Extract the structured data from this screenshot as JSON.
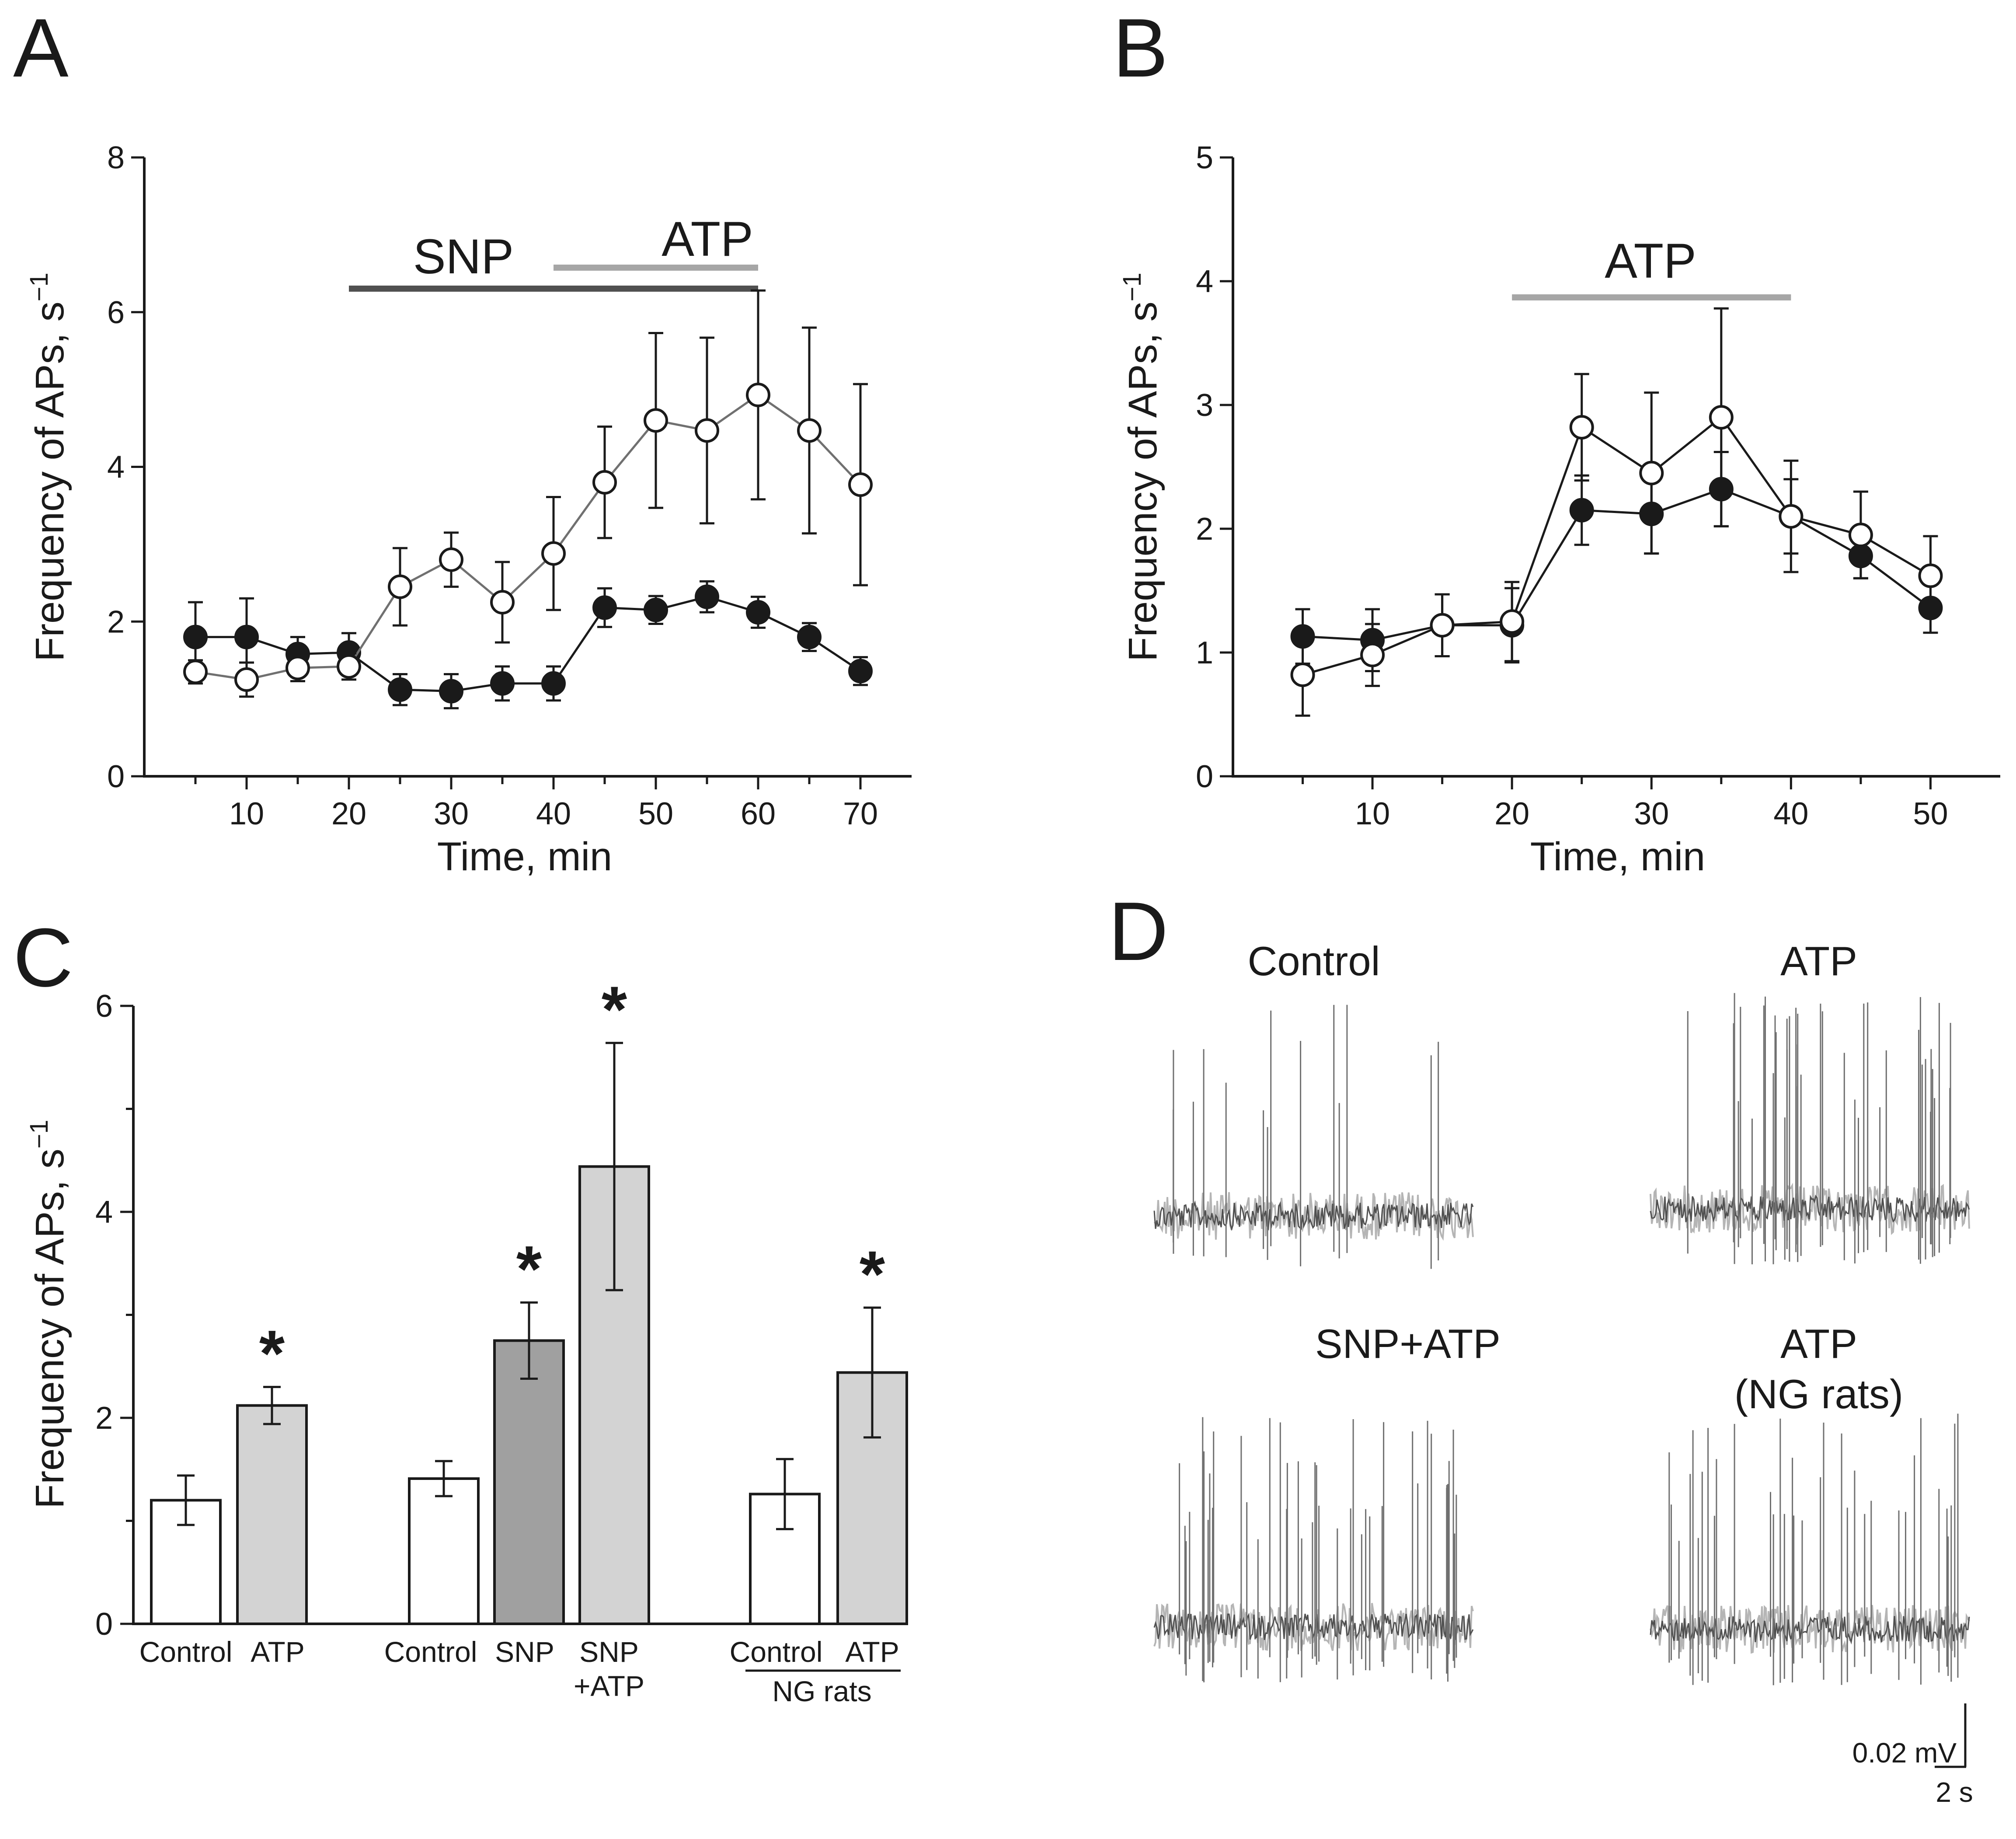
{
  "chart_data": [
    {
      "panel": "A",
      "type": "line",
      "xlabel": "Time, min",
      "ylabel": "Frequency of APs, s⁻¹",
      "xlim": [
        0,
        75
      ],
      "ylim": [
        0,
        8
      ],
      "xticks": [
        10,
        20,
        30,
        40,
        50,
        60,
        70
      ],
      "yticks": [
        0,
        2,
        4,
        6,
        8
      ],
      "bars": [
        {
          "label": "SNP",
          "from": 20,
          "to": 60,
          "color": "#505050"
        },
        {
          "label": "ATP",
          "from": 40,
          "to": 60,
          "color": "#a6a6a6"
        }
      ],
      "series": [
        {
          "marker": "filled",
          "line_color": "#1a1a1a",
          "x": [
            5,
            10,
            15,
            20,
            25,
            30,
            35,
            40,
            45,
            50,
            55,
            60,
            65,
            70
          ],
          "values": [
            1.8,
            1.8,
            1.58,
            1.6,
            1.12,
            1.1,
            1.2,
            1.2,
            2.18,
            2.15,
            2.32,
            2.12,
            1.8,
            1.36
          ],
          "errors": [
            0.45,
            0.5,
            0.22,
            0.25,
            0.2,
            0.22,
            0.22,
            0.22,
            0.25,
            0.18,
            0.2,
            0.2,
            0.18,
            0.18
          ]
        },
        {
          "marker": "open",
          "line_color": "#707070",
          "x": [
            5,
            10,
            15,
            20,
            25,
            30,
            35,
            40,
            45,
            50,
            55,
            60,
            65,
            70
          ],
          "values": [
            1.35,
            1.25,
            1.4,
            1.42,
            2.45,
            2.8,
            2.25,
            2.88,
            3.8,
            4.6,
            4.47,
            4.93,
            4.47,
            3.77
          ],
          "errors": [
            0.15,
            0.22,
            0.17,
            0.17,
            0.5,
            0.35,
            0.52,
            0.73,
            0.72,
            1.13,
            1.2,
            1.35,
            1.33,
            1.3
          ]
        }
      ]
    },
    {
      "panel": "B",
      "type": "line",
      "xlabel": "Time, min",
      "ylabel": "Frequency of APs, s⁻¹",
      "xlim": [
        0,
        55
      ],
      "ylim": [
        0,
        5
      ],
      "xticks": [
        10,
        20,
        30,
        40,
        50
      ],
      "yticks": [
        0,
        1,
        2,
        3,
        4,
        5
      ],
      "bars": [
        {
          "label": "ATP",
          "from": 20,
          "to": 40,
          "color": "#a6a6a6"
        }
      ],
      "series": [
        {
          "marker": "filled",
          "line_color": "#1a1a1a",
          "x": [
            5,
            10,
            15,
            20,
            25,
            30,
            35,
            40,
            45,
            50
          ],
          "values": [
            1.13,
            1.1,
            1.22,
            1.22,
            2.15,
            2.12,
            2.32,
            2.1,
            1.78,
            1.36
          ],
          "errors": [
            0.22,
            0.25,
            0.25,
            0.3,
            0.28,
            0.32,
            0.3,
            0.3,
            0.18,
            0.2
          ]
        },
        {
          "marker": "open",
          "line_color": "#1a1a1a",
          "x": [
            5,
            10,
            15,
            20,
            25,
            30,
            35,
            40,
            45,
            50
          ],
          "values": [
            0.82,
            0.98,
            1.22,
            1.25,
            2.82,
            2.45,
            2.9,
            2.1,
            1.95,
            1.62
          ],
          "errors": [
            0.33,
            0.25,
            0.25,
            0.32,
            0.43,
            0.65,
            0.88,
            0.45,
            0.35,
            0.32
          ]
        }
      ]
    },
    {
      "panel": "C",
      "type": "bar",
      "ylabel": "Frequency of APs, s⁻¹",
      "ylim": [
        0,
        6
      ],
      "yticks": [
        0,
        2,
        4,
        6
      ],
      "categories": [
        "Control",
        "ATP",
        "Control",
        "SNP",
        "SNP +ATP",
        "Control",
        "ATP"
      ],
      "values": [
        1.2,
        2.12,
        1.41,
        2.75,
        4.44,
        1.26,
        2.44
      ],
      "errors": [
        0.24,
        0.18,
        0.17,
        0.37,
        1.2,
        0.34,
        0.63
      ],
      "significant": [
        false,
        true,
        false,
        true,
        true,
        false,
        true
      ],
      "bar_colors": [
        "#ffffff",
        "#d3d3d3",
        "#ffffff",
        "#a0a0a0",
        "#d3d3d3",
        "#ffffff",
        "#d3d3d3"
      ],
      "group_label": "NG rats"
    }
  ],
  "panels": {
    "A": {
      "label": "A",
      "ylabel_main": "Frequency of APs, s",
      "ylabel_sup": "−1",
      "xlabel": "Time, min"
    },
    "B": {
      "label": "B",
      "ylabel_main": "Frequency of APs, s",
      "ylabel_sup": "−1",
      "xlabel": "Time, min"
    },
    "C": {
      "label": "C",
      "ylabel_main": "Frequency of APs, s",
      "ylabel_sup": "−1",
      "cat_line1": [
        "Control",
        "ATP",
        "Control",
        "SNP",
        "SNP",
        "Control",
        "ATP"
      ],
      "cat_line2_snp_atp": "+ATP",
      "group_label": "NG rats",
      "star": "*"
    },
    "D": {
      "label": "D",
      "traces": [
        {
          "title": "Control",
          "subtitle": ""
        },
        {
          "title": "ATP",
          "subtitle": ""
        },
        {
          "title": "SNP+ATP",
          "subtitle": ""
        },
        {
          "title": "ATP",
          "subtitle": "(NG rats)"
        }
      ],
      "scale_voltage": "0.02 mV",
      "scale_time": "2 s"
    }
  }
}
